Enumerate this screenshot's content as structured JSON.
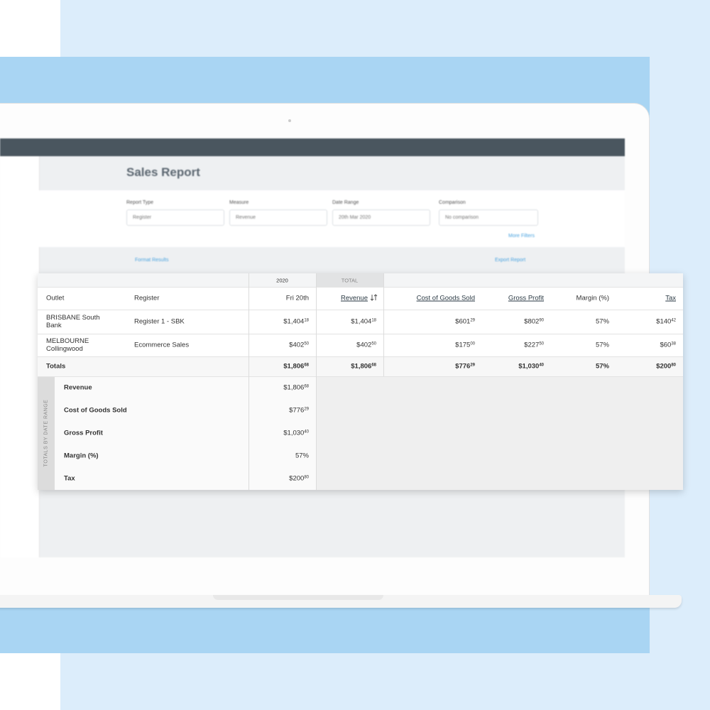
{
  "app": {
    "title": "Sales Report",
    "filters": [
      {
        "label": "Report Type",
        "value": "Register"
      },
      {
        "label": "Measure",
        "value": "Revenue"
      },
      {
        "label": "Date Range",
        "value": "20th Mar 2020"
      },
      {
        "label": "Comparison",
        "value": "No comparison"
      }
    ],
    "more_filters": "More Filters",
    "format_results": "Format Results",
    "export_report": "Export Report"
  },
  "table": {
    "group_headers": [
      "2020",
      "TOTAL"
    ],
    "columns": [
      "Outlet",
      "Register",
      "Fri 20th",
      "Revenue",
      "Cost of Goods Sold",
      "Gross Profit",
      "Margin (%)",
      "Tax"
    ],
    "rows": [
      [
        "BRISBANE South Bank",
        "Register 1 - SBK",
        {
          "main": "$1,404",
          "cents": "18"
        },
        {
          "main": "$1,404",
          "cents": "18"
        },
        {
          "main": "$601",
          "cents": "29"
        },
        {
          "main": "$802",
          "cents": "90"
        },
        "57%",
        {
          "main": "$140",
          "cents": "42"
        }
      ],
      [
        "MELBOURNE Collingwood",
        "Ecommerce Sales",
        {
          "main": "$402",
          "cents": "50"
        },
        {
          "main": "$402",
          "cents": "50"
        },
        {
          "main": "$175",
          "cents": "00"
        },
        {
          "main": "$227",
          "cents": "50"
        },
        "57%",
        {
          "main": "$60",
          "cents": "38"
        }
      ]
    ],
    "totals": [
      "Totals",
      {
        "main": "$1,806",
        "cents": "68"
      },
      {
        "main": "$1,806",
        "cents": "68"
      },
      {
        "main": "$776",
        "cents": "29"
      },
      {
        "main": "$1,030",
        "cents": "40"
      },
      "57%",
      {
        "main": "$200",
        "cents": "80"
      }
    ],
    "side_title": "TOTALS BY DATE RANGE",
    "side_rows": [
      {
        "label": "Revenue",
        "value": {
          "main": "$1,806",
          "cents": "68"
        }
      },
      {
        "label": "Cost of Goods Sold",
        "value": {
          "main": "$776",
          "cents": "29"
        }
      },
      {
        "label": "Gross Profit",
        "value": {
          "main": "$1,030",
          "cents": "40"
        }
      },
      {
        "label": "Margin (%)",
        "value": "57%"
      },
      {
        "label": "Tax",
        "value": {
          "main": "$200",
          "cents": "80"
        }
      }
    ]
  }
}
